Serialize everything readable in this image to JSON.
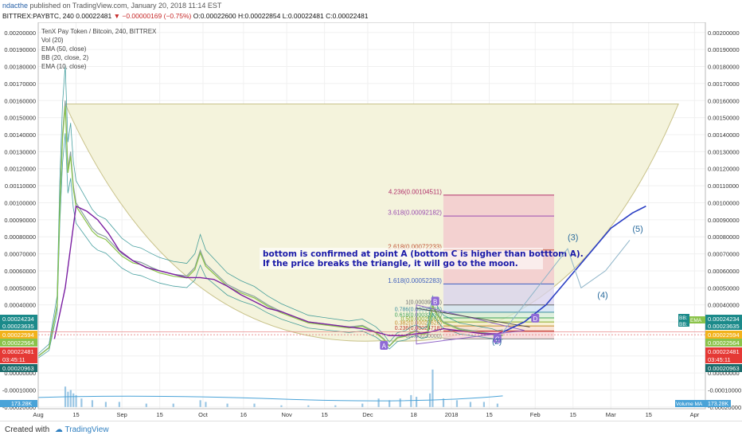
{
  "header": {
    "author": "ndacthe",
    "published": "published on TradingView.com, January 20, 2018 11:14 EST",
    "symbol": "BITTREX:PAYBTC, 240",
    "last": "0.00022481",
    "change": "−0.00000169 (−0.75%)",
    "ohlc": "O:0.00022600 H:0.00022854 L:0.00022481 C:0.00022481"
  },
  "legend": {
    "title": "TenX Pay Token / Bitcoin, 240, BITTREX",
    "lines": [
      "Vol (20)",
      "EMA (50, close)",
      "BB (20, close, 2)",
      "EMA (10, close)"
    ]
  },
  "colors": {
    "candle": "#8aa0a0",
    "ema10": "#8bc34a",
    "ema50": "#7b1fa2",
    "bb": "#1b8a8a",
    "cup": "#f4f3dc",
    "cup_line": "#c9c28a",
    "projection": "#2b3fc4",
    "volume": "#9ac6e4",
    "annotation_text": "#1a1aa8"
  },
  "annotation": {
    "line1": "bottom is confirmed at point A (bottom C is higher than botttom A).",
    "line2": "If the price breaks the triangle, it will go to the moon."
  },
  "wave_labels": [
    "(3)",
    "(4)",
    "(5)"
  ],
  "points": {
    "A": "A",
    "B": "B",
    "C": "C",
    "D": "D",
    "two": "(2)"
  },
  "fib": [
    {
      "label": "4.236(0.00104511)",
      "price": 0.00104511
    },
    {
      "label": "3.618(0.00092182)",
      "price": 0.00092182
    },
    {
      "label": "2.618(0.00072233)",
      "price": 0.00072233
    },
    {
      "label": "1.618(0.00052283)",
      "price": 0.00052283
    },
    {
      "label": "1(0.00039954)",
      "price": 0.00039954
    },
    {
      "label": "0.786(0.00035685)",
      "price": 0.00035685
    },
    {
      "label": "0.618(0.00032334)",
      "price": 0.00032334
    },
    {
      "label": "0.5(0.00029980)",
      "price": 0.0002998
    },
    {
      "label": "0.382(0.00027626)",
      "price": 0.00027626
    },
    {
      "label": "0.236(0.00024718)",
      "price": 0.00024718
    },
    {
      "label": "0(0.00020000)",
      "price": 0.0002
    }
  ],
  "price_badges": {
    "left": [
      "0.00024234",
      "0.00023635",
      "0.00022594",
      "0.00022564",
      "0.00022481",
      "03:45:11",
      "0.00020963"
    ],
    "right": [
      "0.00024234",
      "0.00023635",
      "0.00022594",
      "0.00022564",
      "0.00022481",
      "03:45:11",
      "0.00020963"
    ],
    "left_colors": [
      "#1b8a8a",
      "#1b8a8a",
      "#f2b21b",
      "#8bc34a",
      "#e53935",
      "#e53935",
      "#1b6c6c"
    ],
    "right_colors": [
      "#1b8a8a",
      "#1b8a8a",
      "#f2b21b",
      "#8bc34a",
      "#e53935",
      "#e53935",
      "#1b6c6c"
    ],
    "bb_tag": "BB:",
    "bb_tag2": "BB:",
    "ema_tag": "EMA",
    "volume_tag": "Volume MA",
    "volume_value": "173.28K",
    "volume_left": "173.28K"
  },
  "chart_data": {
    "type": "line",
    "title": "TenX Pay Token / Bitcoin, 240, BITTREX",
    "y_ticks": [
      0.002,
      0.0019,
      0.0018,
      0.0017,
      0.0016,
      0.0015,
      0.0014,
      0.0013,
      0.0012,
      0.0011,
      0.001,
      0.0009,
      0.0008,
      0.0007,
      0.0006,
      0.0005,
      0.0004,
      0.0003,
      0.0002,
      0.0001,
      0,
      -0.0001,
      -0.0002
    ],
    "y_tick_labels": [
      "0.00200000",
      "0.00190000",
      "0.00180000",
      "0.00170000",
      "0.00160000",
      "0.00150000",
      "0.00140000",
      "0.00130000",
      "0.00120000",
      "0.00110000",
      "0.00100000",
      "0.00090000",
      "0.00080000",
      "0.00070000",
      "0.00060000",
      "0.00050000",
      "0.00040000",
      "0.00030000",
      "0.00020000",
      "0.00010000",
      "0.00000000",
      "-0.00010000",
      "-0.00020000"
    ],
    "ylim": [
      -0.00021,
      0.00206
    ],
    "x_ticks": [
      {
        "label": "Aug",
        "day": 0
      },
      {
        "label": "15",
        "day": 14
      },
      {
        "label": "Sep",
        "day": 31
      },
      {
        "label": "15",
        "day": 45
      },
      {
        "label": "Oct",
        "day": 61
      },
      {
        "label": "16",
        "day": 76
      },
      {
        "label": "Nov",
        "day": 92
      },
      {
        "label": "15",
        "day": 106
      },
      {
        "label": "Dec",
        "day": 122
      },
      {
        "label": "18",
        "day": 139
      },
      {
        "label": "2018",
        "day": 153
      },
      {
        "label": "15",
        "day": 167
      },
      {
        "label": "Feb",
        "day": 184
      },
      {
        "label": "15",
        "day": 198
      },
      {
        "label": "Mar",
        "day": 212
      },
      {
        "label": "15",
        "day": 226
      },
      {
        "label": "Apr",
        "day": 243
      }
    ],
    "xlim": [
      0,
      247
    ],
    "series": [
      {
        "type": "price",
        "x": [
          0,
          4,
          7,
          8,
          9,
          10,
          11,
          12,
          13,
          14,
          16,
          18,
          20,
          22,
          25,
          28,
          31,
          35,
          38,
          42,
          45,
          50,
          55,
          58,
          60,
          62,
          66,
          70,
          75,
          80,
          85,
          90,
          95,
          100,
          105,
          110,
          115,
          120,
          125,
          128,
          130,
          133,
          136,
          138,
          140,
          142,
          144,
          146,
          148,
          150,
          153,
          156,
          160,
          164,
          168,
          170,
          172
        ],
        "y": [
          0.0001,
          0.00015,
          0.0004,
          0.001,
          0.0014,
          0.0016,
          0.0012,
          0.0013,
          0.0011,
          0.001,
          0.00095,
          0.0009,
          0.00085,
          0.00082,
          0.0008,
          0.00075,
          0.0007,
          0.00066,
          0.00065,
          0.00062,
          0.0006,
          0.00058,
          0.00057,
          0.00062,
          0.00072,
          0.00064,
          0.00058,
          0.00052,
          0.00048,
          0.00045,
          0.0004,
          0.00036,
          0.00033,
          0.0003,
          0.00029,
          0.00028,
          0.00027,
          0.00028,
          0.00024,
          0.0002,
          0.00016,
          0.00021,
          0.00022,
          0.00024,
          0.00025,
          0.00023,
          0.00024,
          0.0004,
          0.00034,
          0.0003,
          0.00028,
          0.00026,
          0.00025,
          0.00024,
          0.00023,
          0.00022,
          0.00022481
        ]
      },
      {
        "type": "ema50",
        "x": [
          6,
          10,
          14,
          18,
          22,
          26,
          30,
          35,
          40,
          45,
          50,
          55,
          60,
          65,
          70,
          75,
          80,
          85,
          90,
          95,
          100,
          105,
          110,
          115,
          120,
          125,
          130,
          135,
          140,
          145,
          150,
          155,
          160,
          165,
          170,
          172
        ],
        "y": [
          0.0002,
          0.0005,
          0.00098,
          0.00095,
          0.0009,
          0.00082,
          0.00072,
          0.00066,
          0.00062,
          0.0006,
          0.00058,
          0.00056,
          0.00056,
          0.00055,
          0.00051,
          0.00046,
          0.00042,
          0.00038,
          0.00036,
          0.00033,
          0.0003,
          0.00029,
          0.00028,
          0.00027,
          0.00026,
          0.00024,
          0.00022,
          0.00022,
          0.00023,
          0.00024,
          0.00026,
          0.00025,
          0.00024,
          0.00023,
          0.00023,
          0.00024234
        ]
      }
    ],
    "volume": {
      "x": [
        10,
        11,
        12,
        13,
        14,
        16,
        20,
        25,
        30,
        40,
        50,
        60,
        62,
        70,
        80,
        90,
        100,
        110,
        120,
        126,
        130,
        134,
        138,
        140,
        145,
        146,
        150,
        155,
        160,
        165,
        170
      ],
      "y": [
        0.00012,
        9e-05,
        0.0001,
        8e-05,
        7e-05,
        5e-05,
        4e-05,
        3e-05,
        3e-05,
        2e-05,
        2e-05,
        4e-05,
        3e-05,
        2e-05,
        2e-05,
        1e-05,
        1e-05,
        1e-05,
        2e-05,
        5e-05,
        4e-05,
        5e-05,
        7e-05,
        6e-05,
        8e-05,
        0.00022,
        5e-05,
        4e-05,
        3e-05,
        3e-05,
        2e-05
      ]
    },
    "cup": {
      "left": {
        "day": 10,
        "price": 0.00158
      },
      "bottom": {
        "day": 128,
        "price": 0.00019
      },
      "right": {
        "day": 237,
        "price": 0.00158
      }
    },
    "projection": {
      "x": [
        172,
        180,
        188,
        196,
        204,
        212,
        220,
        225
      ],
      "y": [
        0.00024,
        0.0003,
        0.0004,
        0.00055,
        0.0007,
        0.00085,
        0.00094,
        0.00098
      ]
    },
    "wave_path": {
      "x": [
        172,
        196,
        201,
        210,
        219
      ],
      "y": [
        0.00024,
        0.00073,
        0.0005,
        0.0006,
        0.00078
      ]
    }
  }
}
